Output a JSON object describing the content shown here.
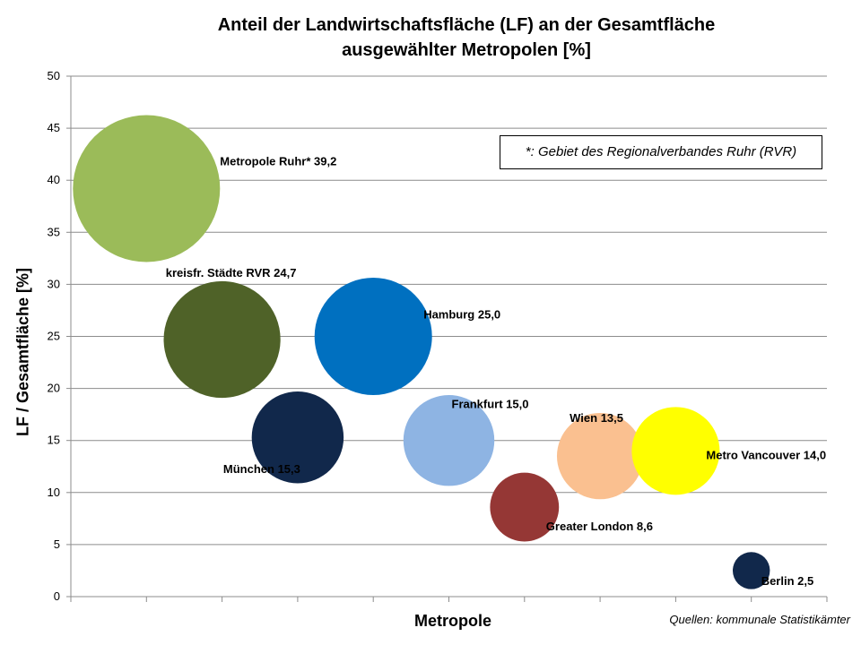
{
  "chart_data": {
    "type": "bubble",
    "title_line1": "Anteil der Landwirtschaftsfläche (LF) an der Gesamtfläche",
    "title_line2": "ausgewählter Metropolen [%]",
    "xlabel": "Metropole",
    "ylabel": "LF / Gesamtfläche [%]",
    "ylim": [
      0,
      50
    ],
    "yticks": [
      "0",
      "5",
      "10",
      "15",
      "20",
      "25",
      "30",
      "35",
      "40",
      "45",
      "50"
    ],
    "grid": true,
    "note": "*: Gebiet des Regionalverbandes Ruhr (RVR)",
    "source": "Quellen: kommunale Statistikämter",
    "points": [
      {
        "name": "Metropole Ruhr*",
        "value": 39.2,
        "label": "Metropole Ruhr* 39,2",
        "color": "#9BBB59",
        "x": 1
      },
      {
        "name": "kreisfr. Städte RVR",
        "value": 24.7,
        "label": "kreisfr. Städte RVR 24,7",
        "color": "#4F6228",
        "x": 2
      },
      {
        "name": "München",
        "value": 15.3,
        "label": "München 15,3",
        "color": "#11284B",
        "x": 3
      },
      {
        "name": "Hamburg",
        "value": 25.0,
        "label": "Hamburg 25,0",
        "color": "#0070C0",
        "x": 4
      },
      {
        "name": "Frankfurt",
        "value": 15.0,
        "label": "Frankfurt 15,0",
        "color": "#8EB4E3",
        "x": 5
      },
      {
        "name": "Greater London",
        "value": 8.6,
        "label": "Greater London 8,6",
        "color": "#953735",
        "x": 6
      },
      {
        "name": "Wien",
        "value": 13.5,
        "label": "Wien 13,5",
        "color": "#FAC090",
        "x": 7
      },
      {
        "name": "Metro Vancouver",
        "value": 14.0,
        "label": "Metro Vancouver 14,0",
        "color": "#FFFF00",
        "x": 8
      },
      {
        "name": "Berlin",
        "value": 2.5,
        "label": "Berlin 2,5",
        "color": "#11284B",
        "x": 9
      }
    ]
  }
}
